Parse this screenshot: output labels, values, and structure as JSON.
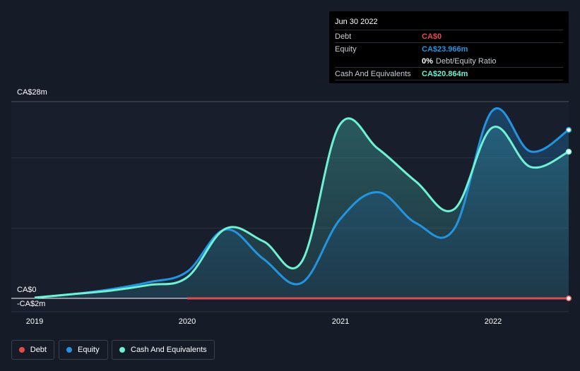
{
  "chart_data": {
    "type": "area",
    "x_ticks": [
      "2019",
      "2020",
      "2021",
      "2022"
    ],
    "y_labels": {
      "top": "CA$28m",
      "zero": "CA$0",
      "bottom": "-CA$2m"
    },
    "ylim": [
      -2,
      28
    ],
    "grid": true,
    "series": [
      {
        "name": "Debt",
        "color": "#e64b4b",
        "points": [
          [
            2020.0,
            0
          ],
          [
            2022.5,
            0
          ]
        ]
      },
      {
        "name": "Equity",
        "color": "#2394df",
        "points": [
          [
            2019.0,
            0.1
          ],
          [
            2019.25,
            0.6
          ],
          [
            2019.5,
            1.3
          ],
          [
            2019.75,
            2.3
          ],
          [
            2020.0,
            3.8
          ],
          [
            2020.25,
            9.8
          ],
          [
            2020.5,
            5.6
          ],
          [
            2020.75,
            2.2
          ],
          [
            2021.0,
            11.2
          ],
          [
            2021.25,
            15.1
          ],
          [
            2021.5,
            10.7
          ],
          [
            2021.75,
            9.9
          ],
          [
            2022.0,
            26.7
          ],
          [
            2022.25,
            20.9
          ],
          [
            2022.5,
            23.966
          ]
        ]
      },
      {
        "name": "Cash And Equivalents",
        "color": "#6ff2d4",
        "points": [
          [
            2019.0,
            0.1
          ],
          [
            2019.25,
            0.6
          ],
          [
            2019.5,
            1.1
          ],
          [
            2019.75,
            1.9
          ],
          [
            2020.0,
            3.0
          ],
          [
            2020.25,
            9.9
          ],
          [
            2020.5,
            8.1
          ],
          [
            2020.75,
            5.2
          ],
          [
            2021.0,
            24.7
          ],
          [
            2021.25,
            21.3
          ],
          [
            2021.5,
            16.6
          ],
          [
            2021.75,
            12.7
          ],
          [
            2022.0,
            24.3
          ],
          [
            2022.25,
            18.7
          ],
          [
            2022.5,
            20.864
          ]
        ]
      }
    ]
  },
  "tooltip": {
    "date": "Jun 30 2022",
    "debt_label": "Debt",
    "debt_value": "CA$0",
    "equity_label": "Equity",
    "equity_value": "CA$23.966m",
    "ratio_value": "0%",
    "ratio_label": "Debt/Equity Ratio",
    "cash_label": "Cash And Equivalents",
    "cash_value": "CA$20.864m"
  },
  "legend": {
    "debt": "Debt",
    "equity": "Equity",
    "cash": "Cash And Equivalents"
  },
  "colors": {
    "debt": "#e64b4b",
    "equity": "#2394df",
    "cash": "#6ff2d4"
  }
}
